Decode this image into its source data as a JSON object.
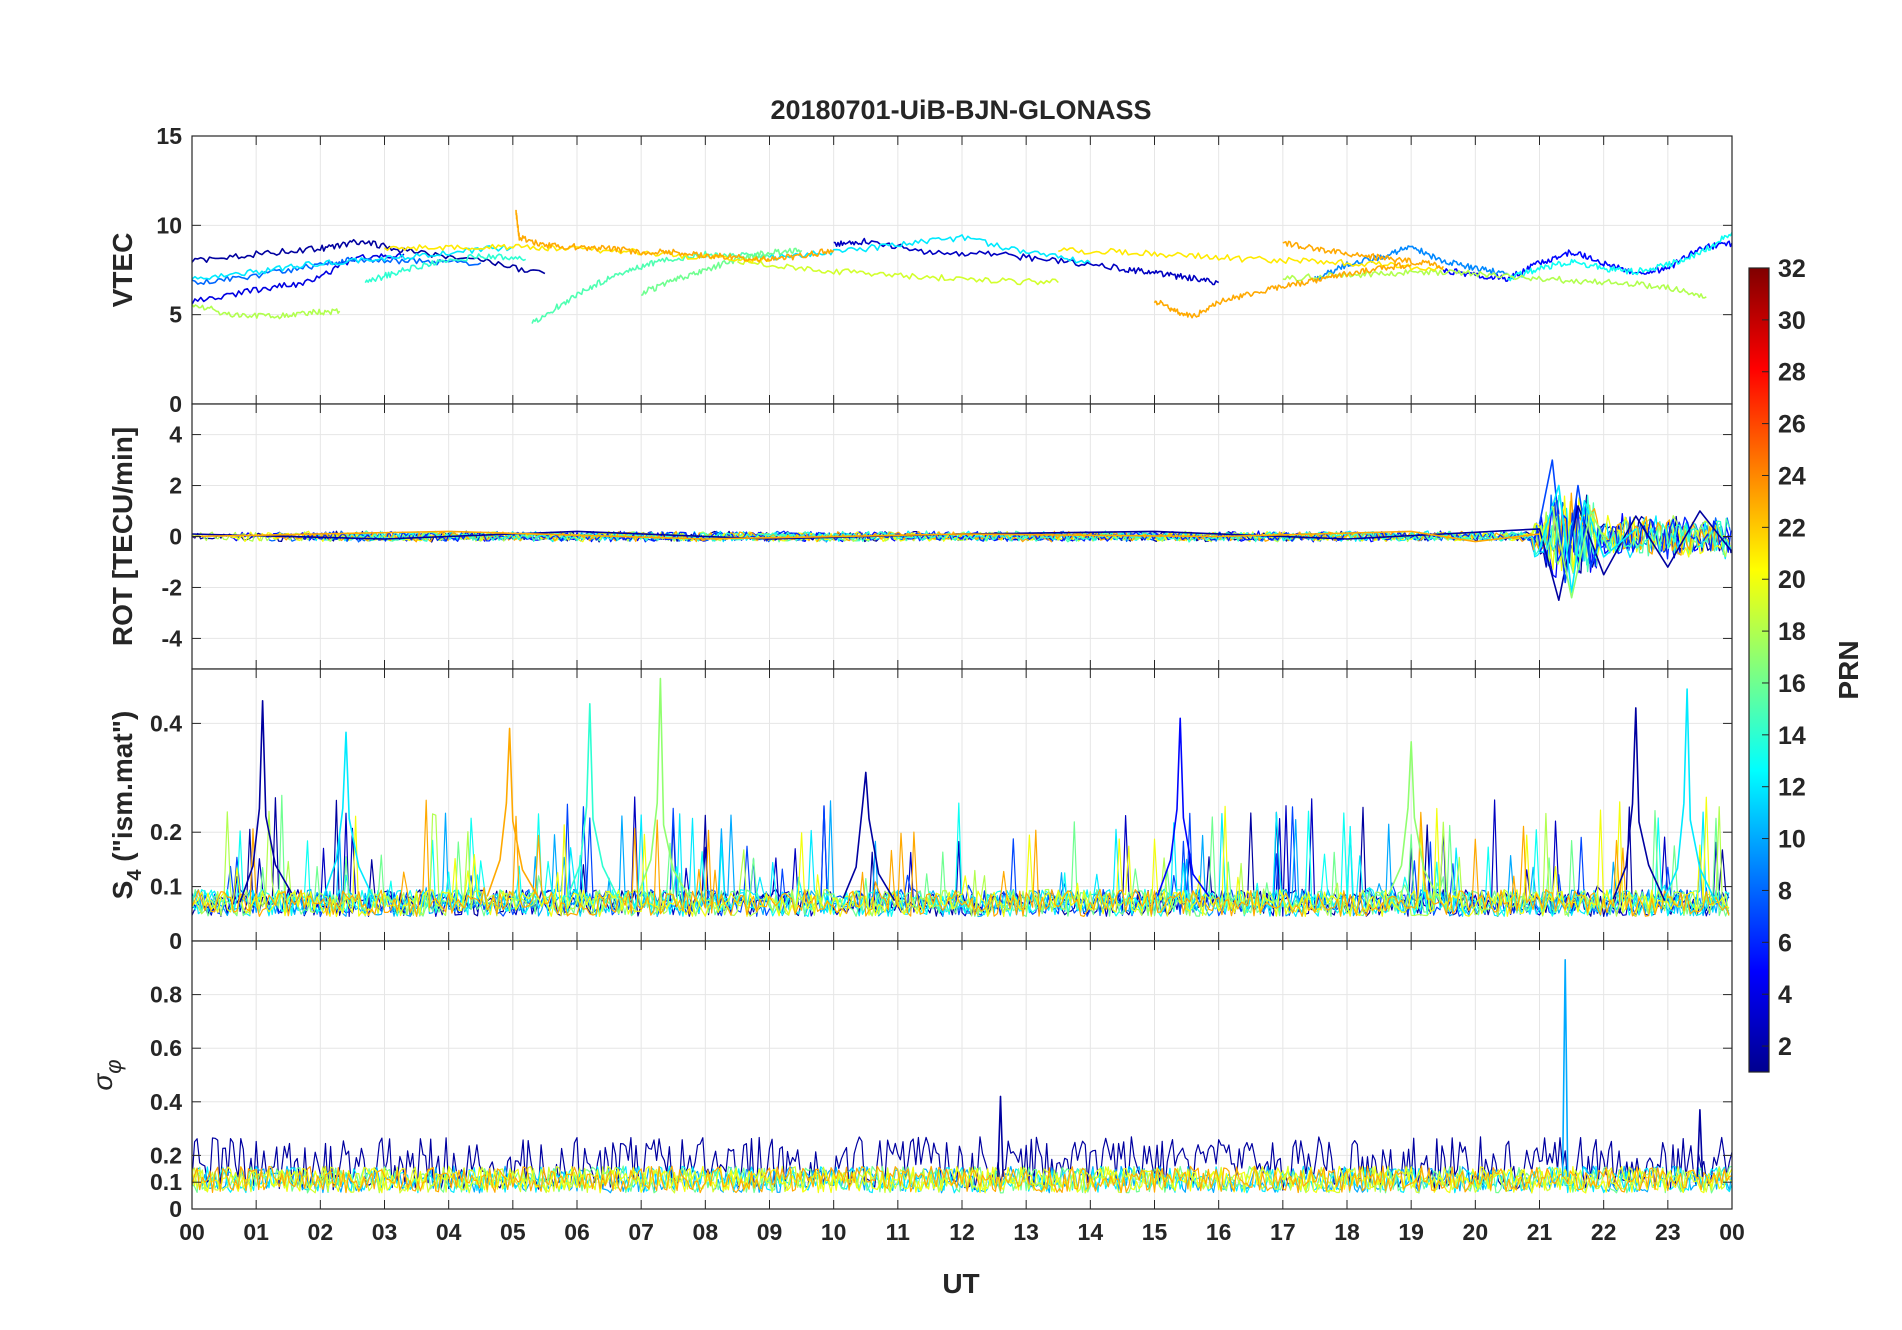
{
  "chart_data": {
    "type": "line",
    "title": "20180701-UiB-BJN-GLONASS",
    "xlabel": "UT",
    "x_tick_labels": [
      "00",
      "01",
      "02",
      "03",
      "04",
      "05",
      "06",
      "07",
      "08",
      "09",
      "10",
      "11",
      "12",
      "13",
      "14",
      "15",
      "16",
      "17",
      "18",
      "19",
      "20",
      "21",
      "22",
      "23",
      "00"
    ],
    "xlim": [
      0,
      24
    ],
    "grid": true,
    "colormap": "jet",
    "colorbar": {
      "label": "PRN",
      "range": [
        1,
        32
      ],
      "tick_labels": [
        "2",
        "4",
        "6",
        "8",
        "10",
        "12",
        "14",
        "16",
        "18",
        "20",
        "22",
        "24",
        "26",
        "28",
        "30",
        "32"
      ],
      "placement": "right"
    },
    "panels": [
      {
        "ylabel": "VTEC",
        "ylim": [
          0,
          15
        ],
        "y_tick_labels": [
          "0",
          "5",
          "10",
          "15"
        ],
        "series": [
          {
            "prn": 2,
            "x": [
              0.0,
              1.0,
              2.0,
              2.6,
              3.3,
              4.5,
              5.5
            ],
            "y": [
              8.0,
              8.4,
              8.7,
              9.1,
              8.6,
              8.0,
              7.3
            ]
          },
          {
            "prn": 4,
            "x": [
              0.0,
              1.0,
              1.8,
              2.6,
              3.3
            ],
            "y": [
              5.7,
              6.4,
              6.8,
              8.2,
              8.4
            ]
          },
          {
            "prn": 3,
            "x": [
              10.0,
              10.5,
              11.5,
              12.5,
              13.5,
              14.5,
              15.0,
              15.5,
              16.0
            ],
            "y": [
              8.9,
              9.1,
              8.5,
              8.4,
              8.0,
              7.6,
              7.3,
              7.1,
              6.8
            ]
          },
          {
            "prn": 5,
            "x": [
              19.5,
              20.0,
              20.5,
              21.0,
              21.5,
              22.0,
              22.5,
              23.0,
              23.5,
              24.0
            ],
            "y": [
              7.5,
              7.2,
              7.0,
              7.9,
              8.5,
              7.9,
              7.3,
              7.6,
              8.7,
              9.0
            ]
          },
          {
            "prn": 8,
            "x": [
              0.0,
              1.0,
              2.0,
              2.5,
              3.5,
              4.5
            ],
            "y": [
              6.8,
              7.2,
              7.8,
              8.1,
              8.0,
              7.9
            ]
          },
          {
            "prn": 9,
            "x": [
              17.5,
              18.0,
              18.5,
              19.0,
              19.5,
              20.0,
              20.5
            ],
            "y": [
              7.0,
              7.8,
              8.2,
              8.8,
              8.0,
              7.6,
              7.3
            ]
          },
          {
            "prn": 12,
            "x": [
              9.0,
              10.0,
              11.0,
              12.0,
              13.0,
              14.0
            ],
            "y": [
              8.2,
              8.5,
              8.9,
              9.3,
              8.5,
              7.9
            ]
          },
          {
            "prn": 12,
            "x": [
              0.0,
              1.0,
              2.0,
              3.0,
              4.0,
              5.0
            ],
            "y": [
              7.0,
              7.4,
              7.9,
              8.1,
              8.5,
              8.8
            ]
          },
          {
            "prn": 13,
            "x": [
              20.5,
              21.0,
              21.5,
              22.0,
              22.5,
              23.0,
              23.5,
              24.0
            ],
            "y": [
              7.0,
              7.6,
              8.0,
              7.6,
              7.4,
              7.8,
              8.4,
              9.6
            ]
          },
          {
            "prn": 14,
            "x": [
              2.7,
              3.2,
              3.8,
              4.5,
              5.2
            ],
            "y": [
              6.8,
              7.4,
              7.9,
              8.3,
              8.1
            ]
          },
          {
            "prn": 15,
            "x": [
              5.3,
              5.8,
              6.3,
              6.8,
              7.3,
              8.0,
              8.5,
              9.0
            ],
            "y": [
              4.5,
              5.7,
              6.7,
              7.5,
              8.0,
              8.4,
              8.3,
              8.2
            ]
          },
          {
            "prn": 16,
            "x": [
              7.0,
              7.5,
              8.0,
              8.5,
              9.0,
              9.5
            ],
            "y": [
              6.2,
              6.9,
              7.5,
              8.1,
              8.5,
              8.6
            ]
          },
          {
            "prn": 18,
            "x": [
              17.0,
              17.8,
              18.5,
              19.2,
              20.0,
              20.8,
              21.5,
              22.3,
              23.0,
              23.6
            ],
            "y": [
              7.0,
              7.2,
              7.3,
              7.4,
              7.3,
              7.1,
              6.9,
              6.8,
              6.5,
              6.0
            ]
          },
          {
            "prn": 18,
            "x": [
              0.0,
              0.6,
              1.2,
              1.8,
              2.3
            ],
            "y": [
              5.6,
              5.0,
              4.9,
              5.1,
              5.2
            ]
          },
          {
            "prn": 19,
            "x": [
              8.5,
              9.5,
              10.5,
              11.5,
              12.5,
              13.5
            ],
            "y": [
              8.0,
              7.6,
              7.3,
              7.1,
              6.9,
              6.8
            ]
          },
          {
            "prn": 21,
            "x": [
              3.0,
              4.0,
              5.0,
              6.0,
              7.0,
              8.0,
              9.0
            ],
            "y": [
              8.7,
              8.8,
              8.8,
              8.7,
              8.5,
              8.2,
              8.0
            ]
          },
          {
            "prn": 21,
            "x": [
              13.5,
              14.5,
              15.5,
              16.5,
              17.5,
              18.5,
              19.5
            ],
            "y": [
              8.6,
              8.5,
              8.3,
              8.1,
              8.0,
              7.8,
              7.5
            ]
          },
          {
            "prn": 23,
            "x": [
              5.05,
              5.1,
              5.5,
              6.0,
              6.5,
              7.0,
              7.5,
              8.0,
              8.5,
              9.0,
              9.5,
              10.0
            ],
            "y": [
              10.8,
              9.3,
              8.9,
              8.8,
              8.7,
              8.5,
              8.5,
              8.3,
              8.2,
              8.1,
              8.3,
              8.6
            ]
          },
          {
            "prn": 23,
            "x": [
              15.0,
              15.3,
              15.6,
              16.0,
              16.5,
              17.0,
              17.5,
              18.0,
              18.5,
              19.0
            ],
            "y": [
              5.8,
              5.2,
              4.9,
              5.7,
              6.2,
              6.6,
              6.9,
              7.3,
              7.6,
              7.8
            ]
          },
          {
            "prn": 23,
            "x": [
              17.0,
              17.5,
              18.0,
              18.5,
              19.0,
              19.5
            ],
            "y": [
              9.0,
              8.7,
              8.4,
              8.2,
              8.0,
              7.7
            ]
          }
        ]
      },
      {
        "ylabel": "ROT [TECU/min]",
        "ylim": [
          -5.2,
          5.2
        ],
        "y_tick_labels": [
          "-4",
          "-2",
          "0",
          "2",
          "4"
        ],
        "series": [
          {
            "prn": 2,
            "x": [
              0.0,
              3.0,
              6.0,
              9.0,
              12.0,
              15.0,
              18.0,
              21.0,
              21.3,
              21.6,
              22.0,
              22.5,
              23.0,
              23.5,
              24.0
            ],
            "y": [
              0.1,
              -0.1,
              0.2,
              -0.1,
              0.1,
              0.2,
              -0.1,
              0.3,
              -2.5,
              1.2,
              -1.5,
              0.8,
              -1.2,
              1.0,
              -0.6
            ]
          },
          {
            "prn": 7,
            "x": [
              21.0,
              21.2,
              21.4,
              21.6,
              21.8,
              22.0
            ],
            "y": [
              0.5,
              3.0,
              -1.8,
              2.0,
              -1.2,
              0.4
            ]
          },
          {
            "prn": 12,
            "x": [
              21.0,
              21.3,
              21.5,
              21.7,
              22.0,
              22.5
            ],
            "y": [
              -0.5,
              2.0,
              -2.2,
              1.4,
              -0.8,
              0.3
            ]
          },
          {
            "prn": 17,
            "x": [
              21.2,
              21.5,
              21.8,
              22.1
            ],
            "y": [
              1.2,
              -2.4,
              1.0,
              -0.6
            ]
          },
          {
            "prn": 23,
            "x": [
              0.0,
              4.0,
              8.0,
              12.0,
              16.0,
              19.0,
              20.0,
              21.0
            ],
            "y": [
              0.0,
              0.2,
              -0.1,
              0.1,
              0.0,
              0.2,
              -0.2,
              0.1
            ]
          }
        ]
      },
      {
        "ylabel": "S4 (\"ism.mat\")",
        "ylabel_main": "S",
        "ylabel_sub": "4",
        "ylabel_rest": " (\"ism.mat\")",
        "ylim": [
          0,
          0.5
        ],
        "y_tick_labels": [
          "0",
          "0.1",
          "0.2",
          "0.4"
        ],
        "peaks": [
          {
            "prn": 2,
            "x": 1.1,
            "y": 0.44
          },
          {
            "prn": 12,
            "x": 2.4,
            "y": 0.39
          },
          {
            "prn": 23,
            "x": 4.95,
            "y": 0.39
          },
          {
            "prn": 14,
            "x": 6.2,
            "y": 0.44
          },
          {
            "prn": 17,
            "x": 7.3,
            "y": 0.49
          },
          {
            "prn": 2,
            "x": 10.5,
            "y": 0.3
          },
          {
            "prn": 5,
            "x": 15.4,
            "y": 0.4
          },
          {
            "prn": 17,
            "x": 19.0,
            "y": 0.37
          },
          {
            "prn": 2,
            "x": 22.5,
            "y": 0.42
          },
          {
            "prn": 12,
            "x": 23.3,
            "y": 0.46
          }
        ]
      },
      {
        "ylabel": "σφ",
        "ylabel_main": "σ",
        "ylabel_sub": "φ",
        "ylim": [
          0,
          1.0
        ],
        "y_tick_labels": [
          "0",
          "0.1",
          "0.2",
          "0.4",
          "0.6",
          "0.8"
        ],
        "peaks": [
          {
            "prn": 10,
            "x": 21.4,
            "y": 0.93
          },
          {
            "prn": 2,
            "x": 12.6,
            "y": 0.42
          },
          {
            "prn": 2,
            "x": 23.5,
            "y": 0.37
          }
        ]
      }
    ]
  }
}
